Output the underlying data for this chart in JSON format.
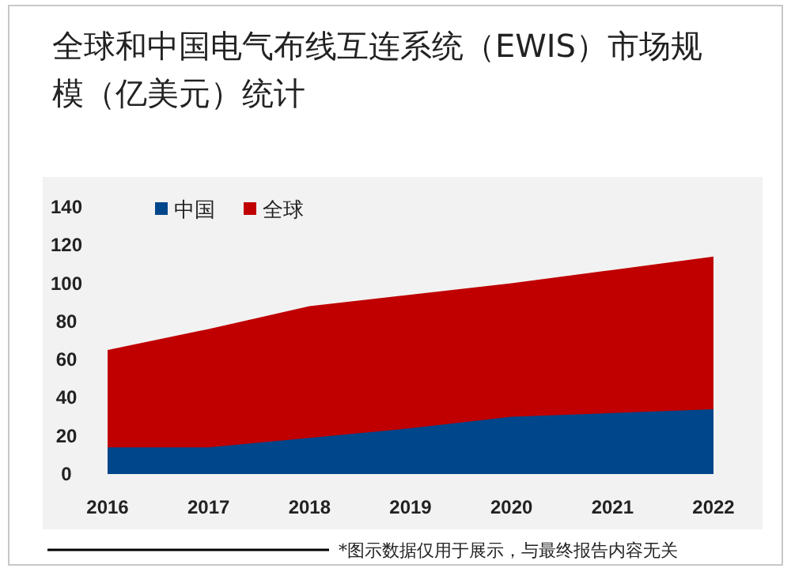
{
  "chart_data": {
    "type": "area",
    "title": "全球和中国电气布线互连系统（EWIS）市场规模（亿美元）统计",
    "categories": [
      "2016",
      "2017",
      "2018",
      "2019",
      "2020",
      "2021",
      "2022"
    ],
    "series": [
      {
        "name": "中国",
        "color": "#00468b",
        "values": [
          14,
          14,
          19,
          24,
          30,
          32,
          34
        ]
      },
      {
        "name": "全球",
        "color": "#c00000",
        "values": [
          65,
          76,
          88,
          94,
          100,
          107,
          114
        ]
      }
    ],
    "ylim": [
      0,
      140
    ],
    "yticks": [
      0,
      20,
      40,
      60,
      80,
      100,
      120,
      140
    ],
    "legend": "top left",
    "annotations": [
      "*图示数据仅用于展示，与最终报告内容无关"
    ]
  }
}
